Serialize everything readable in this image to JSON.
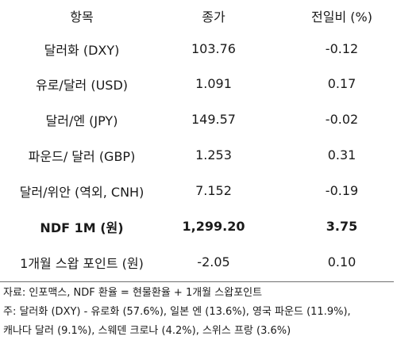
{
  "table": {
    "headers": [
      "항목",
      "종가",
      "전일비 (%)"
    ],
    "rows": [
      {
        "item": "달러화 (DXY)",
        "close": "103.76",
        "change": "-0.12"
      },
      {
        "item": "유로/달러 (USD)",
        "close": "1.091",
        "change": "0.17"
      },
      {
        "item": "달러/엔 (JPY)",
        "close": "149.57",
        "change": "-0.02"
      },
      {
        "item": "파운드/ 달러 (GBP)",
        "close": "1.253",
        "change": "0.31"
      },
      {
        "item": "달러/위안 (역외, CNH)",
        "close": "7.152",
        "change": "-0.19"
      },
      {
        "item": "NDF 1M (원)",
        "close": "1,299.20",
        "change": "3.75"
      },
      {
        "item": "1개월 스왑 포인트 (원)",
        "close": "-2.05",
        "change": "0.10"
      }
    ]
  },
  "notes": {
    "source": "자료: 인포맥스, NDF 환율 = 현물환율 + 1개월 스왑포인트",
    "note_line1": "주: 달러화 (DXY) - 유로화 (57.6%), 일본 엔 (13.6%), 영국 파운드 (11.9%),",
    "note_line2": "캐나다 달러 (9.1%), 스웨덴 크로나 (4.2%), 스위스 프랑 (3.6%)"
  }
}
